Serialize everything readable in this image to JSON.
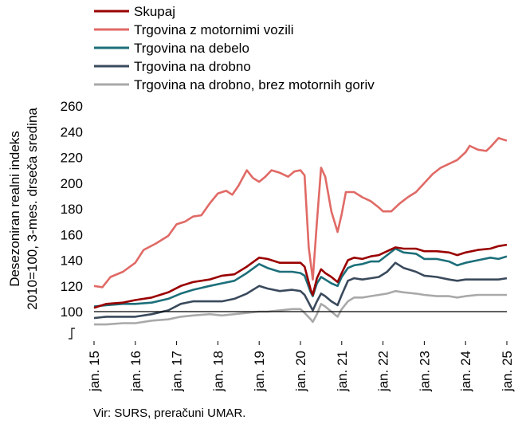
{
  "chart_data": {
    "type": "line",
    "ylabel": "Desezoniran realni indeks\n2010=100, 3-mes. drseča sredina",
    "ylim": [
      100,
      260
    ],
    "yticks": [
      100,
      120,
      140,
      160,
      180,
      200,
      220,
      240,
      260
    ],
    "xlim": [
      2015.0,
      2025.0
    ],
    "xticks": [
      {
        "x": 2015,
        "label": "jan. 15"
      },
      {
        "x": 2016,
        "label": "jan. 16"
      },
      {
        "x": 2017,
        "label": "jan. 17"
      },
      {
        "x": 2018,
        "label": "jan. 18"
      },
      {
        "x": 2019,
        "label": "jan. 19"
      },
      {
        "x": 2020,
        "label": "jan. 20"
      },
      {
        "x": 2021,
        "label": "jan. 21"
      },
      {
        "x": 2022,
        "label": "jan. 22"
      },
      {
        "x": 2023,
        "label": "jan. 23"
      },
      {
        "x": 2024,
        "label": "jan. 24"
      },
      {
        "x": 2025,
        "label": "jan. 25"
      }
    ],
    "axis_break": true,
    "reference_line": 100,
    "legend_position": "top-left",
    "series": [
      {
        "name": "Skupaj",
        "color": "#9a0000",
        "points": [
          [
            2015.0,
            103
          ],
          [
            2015.3,
            106
          ],
          [
            2015.7,
            107
          ],
          [
            2016.0,
            109
          ],
          [
            2016.4,
            111
          ],
          [
            2016.8,
            115
          ],
          [
            2017.1,
            120
          ],
          [
            2017.4,
            123
          ],
          [
            2017.8,
            125
          ],
          [
            2018.1,
            128
          ],
          [
            2018.4,
            129
          ],
          [
            2018.7,
            135
          ],
          [
            2019.0,
            142
          ],
          [
            2019.2,
            141
          ],
          [
            2019.5,
            138
          ],
          [
            2019.8,
            138
          ],
          [
            2020.0,
            138
          ],
          [
            2020.1,
            135
          ],
          [
            2020.25,
            117
          ],
          [
            2020.3,
            113
          ],
          [
            2020.4,
            126
          ],
          [
            2020.5,
            133
          ],
          [
            2020.6,
            130
          ],
          [
            2020.75,
            127
          ],
          [
            2020.9,
            123
          ],
          [
            2021.0,
            130
          ],
          [
            2021.15,
            140
          ],
          [
            2021.3,
            142
          ],
          [
            2021.5,
            141
          ],
          [
            2021.7,
            143
          ],
          [
            2021.9,
            144
          ],
          [
            2022.1,
            147
          ],
          [
            2022.3,
            150
          ],
          [
            2022.5,
            149
          ],
          [
            2022.8,
            149
          ],
          [
            2023.0,
            147
          ],
          [
            2023.3,
            147
          ],
          [
            2023.6,
            146
          ],
          [
            2023.8,
            144
          ],
          [
            2024.0,
            146
          ],
          [
            2024.3,
            148
          ],
          [
            2024.6,
            149
          ],
          [
            2024.8,
            151
          ],
          [
            2025.0,
            152
          ]
        ]
      },
      {
        "name": "Trgovina z motornimi vozili",
        "color": "#e06a66",
        "points": [
          [
            2015.0,
            120
          ],
          [
            2015.2,
            119
          ],
          [
            2015.4,
            127
          ],
          [
            2015.7,
            131
          ],
          [
            2016.0,
            138
          ],
          [
            2016.2,
            148
          ],
          [
            2016.5,
            153
          ],
          [
            2016.8,
            159
          ],
          [
            2017.0,
            168
          ],
          [
            2017.2,
            170
          ],
          [
            2017.4,
            174
          ],
          [
            2017.6,
            175
          ],
          [
            2017.8,
            184
          ],
          [
            2018.0,
            192
          ],
          [
            2018.2,
            194
          ],
          [
            2018.35,
            191
          ],
          [
            2018.5,
            198
          ],
          [
            2018.7,
            210
          ],
          [
            2018.85,
            204
          ],
          [
            2019.0,
            201
          ],
          [
            2019.15,
            205
          ],
          [
            2019.3,
            210
          ],
          [
            2019.5,
            208
          ],
          [
            2019.7,
            205
          ],
          [
            2019.85,
            209
          ],
          [
            2020.0,
            210
          ],
          [
            2020.1,
            206
          ],
          [
            2020.2,
            150
          ],
          [
            2020.3,
            125
          ],
          [
            2020.4,
            170
          ],
          [
            2020.5,
            212
          ],
          [
            2020.6,
            205
          ],
          [
            2020.75,
            178
          ],
          [
            2020.9,
            162
          ],
          [
            2021.0,
            176
          ],
          [
            2021.1,
            193
          ],
          [
            2021.3,
            193
          ],
          [
            2021.5,
            189
          ],
          [
            2021.7,
            186
          ],
          [
            2021.9,
            181
          ],
          [
            2022.0,
            178
          ],
          [
            2022.2,
            178
          ],
          [
            2022.4,
            184
          ],
          [
            2022.6,
            189
          ],
          [
            2022.8,
            193
          ],
          [
            2023.0,
            200
          ],
          [
            2023.2,
            207
          ],
          [
            2023.4,
            212
          ],
          [
            2023.6,
            215
          ],
          [
            2023.8,
            218
          ],
          [
            2024.0,
            224
          ],
          [
            2024.1,
            229
          ],
          [
            2024.3,
            226
          ],
          [
            2024.5,
            225
          ],
          [
            2024.6,
            228
          ],
          [
            2024.8,
            235
          ],
          [
            2025.0,
            233
          ]
        ]
      },
      {
        "name": "Trgovina na debelo",
        "color": "#1c6f7a",
        "points": [
          [
            2015.0,
            104
          ],
          [
            2015.3,
            105
          ],
          [
            2015.7,
            106
          ],
          [
            2016.0,
            106
          ],
          [
            2016.4,
            107
          ],
          [
            2016.8,
            110
          ],
          [
            2017.1,
            114
          ],
          [
            2017.4,
            117
          ],
          [
            2017.8,
            120
          ],
          [
            2018.1,
            122
          ],
          [
            2018.4,
            124
          ],
          [
            2018.7,
            130
          ],
          [
            2019.0,
            137
          ],
          [
            2019.2,
            134
          ],
          [
            2019.5,
            131
          ],
          [
            2019.8,
            131
          ],
          [
            2020.0,
            130
          ],
          [
            2020.1,
            128
          ],
          [
            2020.25,
            115
          ],
          [
            2020.3,
            112
          ],
          [
            2020.4,
            122
          ],
          [
            2020.5,
            127
          ],
          [
            2020.6,
            125
          ],
          [
            2020.75,
            122
          ],
          [
            2020.9,
            120
          ],
          [
            2021.0,
            127
          ],
          [
            2021.15,
            134
          ],
          [
            2021.3,
            136
          ],
          [
            2021.5,
            137
          ],
          [
            2021.7,
            139
          ],
          [
            2021.9,
            139
          ],
          [
            2022.1,
            144
          ],
          [
            2022.3,
            149
          ],
          [
            2022.5,
            146
          ],
          [
            2022.8,
            145
          ],
          [
            2023.0,
            141
          ],
          [
            2023.3,
            141
          ],
          [
            2023.6,
            139
          ],
          [
            2023.8,
            136
          ],
          [
            2024.0,
            138
          ],
          [
            2024.3,
            140
          ],
          [
            2024.6,
            142
          ],
          [
            2024.8,
            141
          ],
          [
            2025.0,
            143
          ]
        ]
      },
      {
        "name": "Trgovina na drobno",
        "color": "#3a4a5c",
        "points": [
          [
            2015.0,
            95
          ],
          [
            2015.3,
            96
          ],
          [
            2015.7,
            96
          ],
          [
            2016.0,
            96
          ],
          [
            2016.4,
            98
          ],
          [
            2016.8,
            101
          ],
          [
            2017.1,
            106
          ],
          [
            2017.4,
            108
          ],
          [
            2017.8,
            108
          ],
          [
            2018.1,
            108
          ],
          [
            2018.4,
            110
          ],
          [
            2018.7,
            114
          ],
          [
            2019.0,
            120
          ],
          [
            2019.2,
            118
          ],
          [
            2019.5,
            116
          ],
          [
            2019.8,
            117
          ],
          [
            2020.0,
            116
          ],
          [
            2020.1,
            113
          ],
          [
            2020.25,
            104
          ],
          [
            2020.3,
            101
          ],
          [
            2020.4,
            108
          ],
          [
            2020.5,
            114
          ],
          [
            2020.6,
            112
          ],
          [
            2020.75,
            108
          ],
          [
            2020.9,
            105
          ],
          [
            2021.0,
            113
          ],
          [
            2021.15,
            124
          ],
          [
            2021.3,
            126
          ],
          [
            2021.5,
            125
          ],
          [
            2021.7,
            126
          ],
          [
            2021.9,
            127
          ],
          [
            2022.1,
            131
          ],
          [
            2022.3,
            138
          ],
          [
            2022.5,
            134
          ],
          [
            2022.8,
            131
          ],
          [
            2023.0,
            128
          ],
          [
            2023.3,
            127
          ],
          [
            2023.6,
            125
          ],
          [
            2023.8,
            124
          ],
          [
            2024.0,
            125
          ],
          [
            2024.3,
            125
          ],
          [
            2024.6,
            125
          ],
          [
            2024.8,
            125
          ],
          [
            2025.0,
            126
          ]
        ]
      },
      {
        "name": "Trgovina na drobno, brez motornih goriv",
        "color": "#a9a9a9",
        "points": [
          [
            2015.0,
            90
          ],
          [
            2015.3,
            90
          ],
          [
            2015.7,
            91
          ],
          [
            2016.0,
            91
          ],
          [
            2016.4,
            93
          ],
          [
            2016.8,
            94
          ],
          [
            2017.1,
            96
          ],
          [
            2017.4,
            97
          ],
          [
            2017.8,
            98
          ],
          [
            2018.1,
            97
          ],
          [
            2018.4,
            98
          ],
          [
            2018.7,
            99
          ],
          [
            2019.0,
            100
          ],
          [
            2019.2,
            100
          ],
          [
            2019.5,
            101
          ],
          [
            2019.8,
            102
          ],
          [
            2020.0,
            102
          ],
          [
            2020.1,
            99
          ],
          [
            2020.25,
            94
          ],
          [
            2020.3,
            92
          ],
          [
            2020.4,
            98
          ],
          [
            2020.5,
            106
          ],
          [
            2020.6,
            104
          ],
          [
            2020.75,
            100
          ],
          [
            2020.9,
            96
          ],
          [
            2021.0,
            102
          ],
          [
            2021.15,
            108
          ],
          [
            2021.3,
            111
          ],
          [
            2021.5,
            111
          ],
          [
            2021.7,
            112
          ],
          [
            2021.9,
            113
          ],
          [
            2022.1,
            114
          ],
          [
            2022.3,
            116
          ],
          [
            2022.5,
            115
          ],
          [
            2022.8,
            114
          ],
          [
            2023.0,
            113
          ],
          [
            2023.3,
            112
          ],
          [
            2023.6,
            112
          ],
          [
            2023.8,
            111
          ],
          [
            2024.0,
            112
          ],
          [
            2024.3,
            113
          ],
          [
            2024.6,
            113
          ],
          [
            2024.8,
            113
          ],
          [
            2025.0,
            113
          ]
        ]
      }
    ]
  },
  "source": "Vir: SURS, preračuni UMAR."
}
